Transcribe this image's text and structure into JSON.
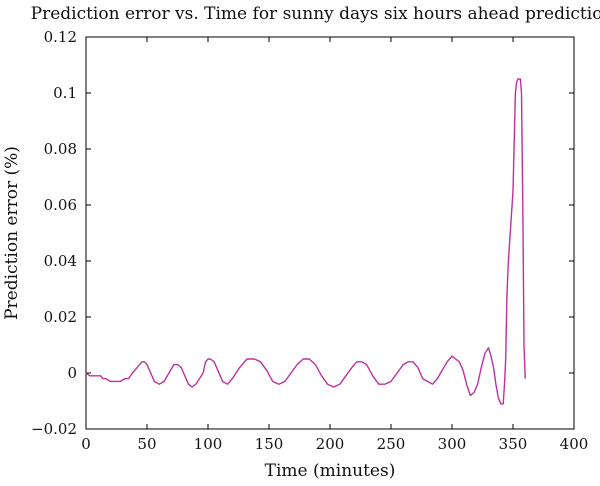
{
  "chart_data": {
    "type": "line",
    "title": "Prediction error vs. Time for sunny days six hours ahead prediction",
    "xlabel": "Time (minutes)",
    "ylabel": "Prediction error (%)",
    "xlim": [
      0,
      400
    ],
    "ylim": [
      -0.02,
      0.12
    ],
    "xticks": [
      0,
      50,
      100,
      150,
      200,
      250,
      300,
      350,
      400
    ],
    "xtick_labels": [
      "0",
      "50",
      "100",
      "150",
      "200",
      "250",
      "300",
      "350",
      "400"
    ],
    "yticks": [
      -0.02,
      0,
      0.02,
      0.04,
      0.06,
      0.08,
      0.1,
      0.12
    ],
    "ytick_labels": [
      "−0.02",
      "0",
      "0.02",
      "0.04",
      "0.06",
      "0.08",
      "0.1",
      "0.12"
    ],
    "grid": false,
    "line_color": "#c0309c",
    "series": [
      {
        "x": [
          0,
          3,
          5,
          10,
          12,
          14,
          16,
          20,
          25,
          28,
          32,
          35,
          38,
          42,
          46,
          48,
          50,
          53,
          56,
          60,
          64,
          68,
          72,
          75,
          78,
          81,
          84,
          87,
          90,
          93,
          96,
          98,
          100,
          102,
          105,
          108,
          112,
          116,
          120,
          126,
          132,
          138,
          143,
          148,
          153,
          158,
          163,
          168,
          173,
          178,
          183,
          188,
          193,
          198,
          203,
          208,
          213,
          218,
          222,
          226,
          230,
          235,
          240,
          245,
          250,
          255,
          260,
          264,
          268,
          272,
          276,
          280,
          284,
          288,
          292,
          296,
          300,
          303,
          306,
          309,
          312,
          315,
          318,
          321,
          324,
          327,
          330,
          332,
          334,
          336,
          338,
          340,
          342,
          343,
          344,
          345,
          346,
          347,
          348,
          350,
          352,
          353,
          354,
          355,
          356,
          357,
          358,
          359,
          360
        ],
        "y": [
          0.0,
          -0.001,
          -0.001,
          -0.001,
          -0.001,
          -0.002,
          -0.002,
          -0.003,
          -0.003,
          -0.003,
          -0.002,
          -0.002,
          0.0,
          0.002,
          0.004,
          0.004,
          0.003,
          0.0,
          -0.003,
          -0.004,
          -0.003,
          0.0,
          0.003,
          0.003,
          0.002,
          -0.001,
          -0.004,
          -0.005,
          -0.004,
          -0.002,
          0.0,
          0.004,
          0.005,
          0.005,
          0.004,
          0.001,
          -0.003,
          -0.004,
          -0.002,
          0.002,
          0.005,
          0.005,
          0.004,
          0.001,
          -0.003,
          -0.004,
          -0.003,
          0.0,
          0.003,
          0.005,
          0.005,
          0.003,
          -0.001,
          -0.004,
          -0.005,
          -0.004,
          -0.001,
          0.002,
          0.004,
          0.004,
          0.003,
          -0.001,
          -0.004,
          -0.004,
          -0.003,
          0.0,
          0.003,
          0.004,
          0.004,
          0.002,
          -0.002,
          -0.003,
          -0.004,
          -0.002,
          0.001,
          0.004,
          0.006,
          0.005,
          0.004,
          0.001,
          -0.004,
          -0.008,
          -0.007,
          -0.004,
          0.002,
          0.007,
          0.009,
          0.006,
          0.002,
          -0.004,
          -0.009,
          -0.011,
          -0.011,
          -0.004,
          0.005,
          0.027,
          0.038,
          0.045,
          0.052,
          0.065,
          0.1,
          0.104,
          0.105,
          0.105,
          0.105,
          0.1,
          0.06,
          0.01,
          -0.002
        ]
      }
    ]
  }
}
